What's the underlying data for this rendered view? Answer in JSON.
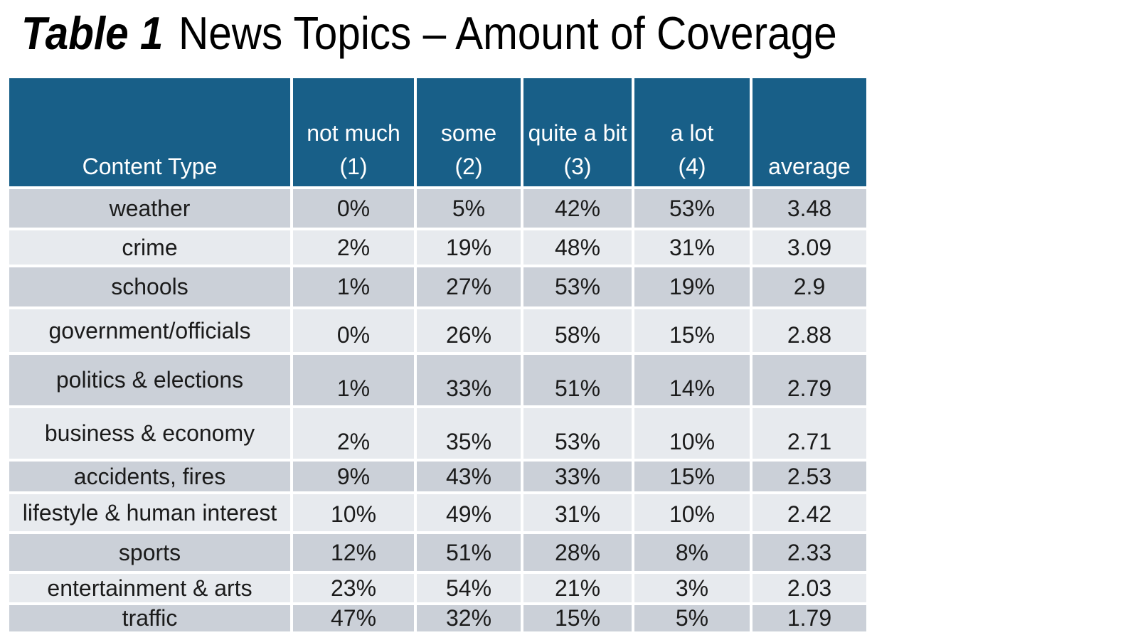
{
  "title": {
    "label": "Table 1",
    "text": "News Topics – Amount of Coverage"
  },
  "table": {
    "columns": [
      {
        "line1": "",
        "line2": "Content Type"
      },
      {
        "line1": "not much",
        "line2": "(1)"
      },
      {
        "line1": "some",
        "line2": "(2)"
      },
      {
        "line1": "quite a bit",
        "line2": "(3)"
      },
      {
        "line1": "a lot",
        "line2": "(4)"
      },
      {
        "line1": "",
        "line2": "average"
      }
    ],
    "rows": [
      {
        "label": "weather",
        "values": [
          "0%",
          "5%",
          "42%",
          "53%",
          "3.48"
        ]
      },
      {
        "label": "crime",
        "values": [
          "2%",
          "19%",
          "48%",
          "31%",
          "3.09"
        ]
      },
      {
        "label": "schools",
        "values": [
          "1%",
          "27%",
          "53%",
          "19%",
          "2.9"
        ]
      },
      {
        "label": "government/officials",
        "values": [
          "0%",
          "26%",
          "58%",
          "15%",
          "2.88"
        ]
      },
      {
        "label": "politics & elections",
        "values": [
          "1%",
          "33%",
          "51%",
          "14%",
          "2.79"
        ]
      },
      {
        "label": "business & economy",
        "values": [
          "2%",
          "35%",
          "53%",
          "10%",
          "2.71"
        ]
      },
      {
        "label": "accidents, fires",
        "values": [
          "9%",
          "43%",
          "33%",
          "15%",
          "2.53"
        ]
      },
      {
        "label": "lifestyle & human interest",
        "values": [
          "10%",
          "49%",
          "31%",
          "10%",
          "2.42"
        ]
      },
      {
        "label": "sports",
        "values": [
          "12%",
          "51%",
          "28%",
          "8%",
          "2.33"
        ]
      },
      {
        "label": "entertainment & arts",
        "values": [
          "23%",
          "54%",
          "21%",
          "3%",
          "2.03"
        ]
      },
      {
        "label": "traffic",
        "values": [
          "47%",
          "32%",
          "15%",
          "5%",
          "1.79"
        ]
      }
    ]
  },
  "chart_data": {
    "type": "table",
    "title": "Table 1  News Topics – Amount of Coverage",
    "categories": [
      "weather",
      "crime",
      "schools",
      "government/officials",
      "politics & elections",
      "business & economy",
      "accidents, fires",
      "lifestyle & human interest",
      "sports",
      "entertainment & arts",
      "traffic"
    ],
    "series": [
      {
        "name": "not much (1)",
        "unit": "%",
        "values": [
          0,
          2,
          1,
          0,
          1,
          2,
          9,
          10,
          12,
          23,
          47
        ]
      },
      {
        "name": "some (2)",
        "unit": "%",
        "values": [
          5,
          19,
          27,
          26,
          33,
          35,
          43,
          49,
          51,
          54,
          32
        ]
      },
      {
        "name": "quite a bit (3)",
        "unit": "%",
        "values": [
          42,
          48,
          53,
          58,
          51,
          53,
          33,
          31,
          28,
          21,
          15
        ]
      },
      {
        "name": "a lot (4)",
        "unit": "%",
        "values": [
          53,
          31,
          19,
          15,
          14,
          10,
          15,
          10,
          8,
          3,
          5
        ]
      },
      {
        "name": "average",
        "unit": "",
        "values": [
          3.48,
          3.09,
          2.9,
          2.88,
          2.79,
          2.71,
          2.53,
          2.42,
          2.33,
          2.03,
          1.79
        ]
      }
    ]
  },
  "colors": {
    "header_bg": "#185F88",
    "row_dark": "#CBD0D8",
    "row_light": "#E7EAEE",
    "header_text": "#FFFFFF",
    "body_text": "#1B1B1B",
    "title_text": "#000000"
  }
}
